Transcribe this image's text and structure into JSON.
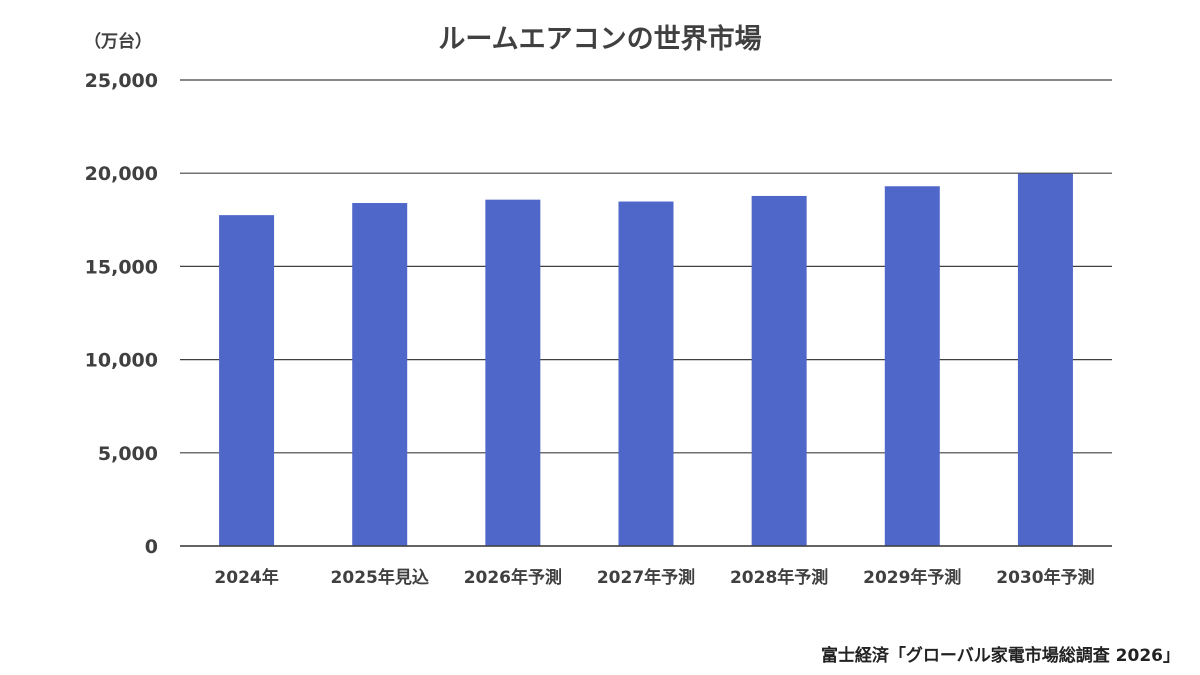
{
  "chart_data": {
    "type": "bar",
    "title": "ルームエアコンの世界市場",
    "unit_label": "（万台）",
    "categories": [
      "2024年",
      "2025年見込",
      "2026年予測",
      "2027年予測",
      "2028年予測",
      "2029年予測",
      "2030年予測"
    ],
    "series": [
      {
        "values": [
          17750,
          18400,
          18580,
          18480,
          18780,
          19300,
          19980
        ]
      }
    ],
    "ylim": [
      0,
      25000
    ],
    "yticks": [
      0,
      5000,
      10000,
      15000,
      20000,
      25000
    ],
    "ytick_labels": [
      "0",
      "5,000",
      "10,000",
      "15,000",
      "20,000",
      "25,000"
    ],
    "grid": true,
    "legend": "none",
    "colors": {
      "bar": "#4F67C9",
      "grid": "#404040",
      "text": "#404040"
    }
  },
  "source": "富士経済「グローバル家電市場総調査 2026」"
}
